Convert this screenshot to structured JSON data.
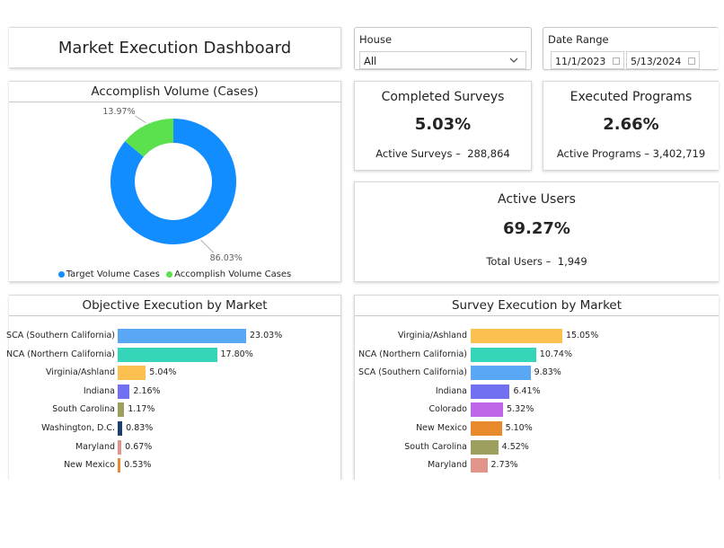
{
  "title": "Market Execution Dashboard",
  "slicers": {
    "house": {
      "label": "House",
      "value": "All"
    },
    "date_range": {
      "label": "Date Range",
      "start": "11/1/2023",
      "end": "5/13/2024"
    }
  },
  "kpis": {
    "surveys": {
      "title": "Completed Surveys",
      "value": "5.03%",
      "sub_label": "Active Surveys",
      "sub_value": "288,864"
    },
    "programs": {
      "title": "Executed Programs",
      "value": "2.66%",
      "sub_label": "Active Programs",
      "sub_value": "3,402,719"
    },
    "users": {
      "title": "Active Users",
      "value": "69.27%",
      "sub_label": "Total Users",
      "sub_value": "1,949"
    }
  },
  "colors": {
    "target": "#118dff",
    "accomplish": "#5be04e"
  },
  "chart_data": [
    {
      "type": "pie",
      "variant": "donut",
      "title": "Accomplish Volume (Cases)",
      "categories": [
        "Target Volume Cases",
        "Accomplish Volume Cases"
      ],
      "values": [
        86.03,
        13.97
      ],
      "labels": [
        "86.03%",
        "13.97%"
      ],
      "colors": [
        "#118dff",
        "#5be04e"
      ],
      "legend_position": "bottom"
    },
    {
      "type": "bar",
      "orientation": "horizontal",
      "title": "Objective Execution by Market",
      "categories": [
        "SCA (Southern California)",
        "NCA (Northern California)",
        "Virginia/Ashland",
        "Indiana",
        "South Carolina",
        "Washington, D.C.",
        "Maryland",
        "New Mexico"
      ],
      "values": [
        23.03,
        17.8,
        5.04,
        2.16,
        1.17,
        0.83,
        0.67,
        0.53
      ],
      "labels": [
        "23.03%",
        "17.80%",
        "5.04%",
        "2.16%",
        "1.17%",
        "0.83%",
        "0.67%",
        "0.53%"
      ],
      "colors": [
        "#5aa7f5",
        "#34d5b8",
        "#fbc04f",
        "#7070f0",
        "#9c9f5e",
        "#1c3f6e",
        "#e0948a",
        "#e88a2c"
      ],
      "xlim": [
        0,
        23.03
      ]
    },
    {
      "type": "bar",
      "orientation": "horizontal",
      "title": "Survey Execution by Market",
      "categories": [
        "Virginia/Ashland",
        "NCA (Northern California)",
        "SCA (Southern California)",
        "Indiana",
        "Colorado",
        "New Mexico",
        "South Carolina",
        "Maryland"
      ],
      "values": [
        15.05,
        10.74,
        9.83,
        6.41,
        5.32,
        5.1,
        4.52,
        2.73
      ],
      "labels": [
        "15.05%",
        "10.74%",
        "9.83%",
        "6.41%",
        "5.32%",
        "5.10%",
        "4.52%",
        "2.73%"
      ],
      "colors": [
        "#fbc04f",
        "#34d5b8",
        "#5aa7f5",
        "#7070f0",
        "#c064e8",
        "#e88a2c",
        "#9c9f5e",
        "#e0948a"
      ],
      "xlim": [
        0,
        15.05
      ]
    }
  ]
}
